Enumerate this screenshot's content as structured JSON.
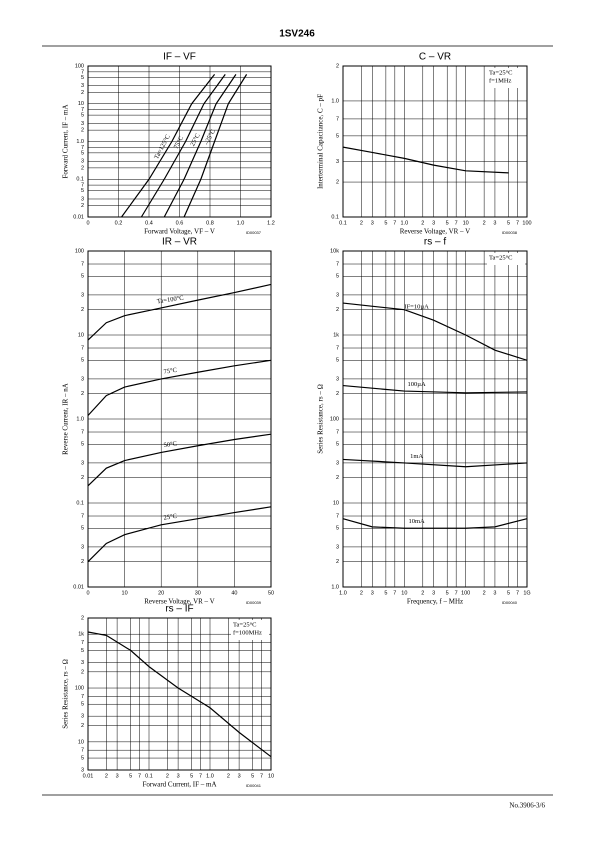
{
  "header": {
    "title": "1SV246"
  },
  "footer": {
    "page": "No.3906-3/6"
  },
  "chart_data": [
    {
      "type": "line",
      "title": "IF – VF",
      "xlabel": "Forward Voltage, VF – V",
      "ylabel": "Forward Current, IF – mA",
      "code": "ID00037",
      "xscale": "linear",
      "yscale": "log",
      "xlim": [
        0,
        1.2
      ],
      "ylim": [
        0.01,
        100
      ],
      "grid": true,
      "xticks": [
        0,
        0.2,
        0.4,
        0.6,
        0.8,
        {
          "value": 1,
          "label": "1.0"
        },
        1.2
      ],
      "yticks": [
        0.01,
        {
          "value": 0.02,
          "label": "2"
        },
        {
          "value": 0.03,
          "label": "3"
        },
        {
          "value": 0.05,
          "label": "5"
        },
        {
          "value": 0.07,
          "label": "7"
        },
        0.1,
        {
          "value": 0.2,
          "label": "2"
        },
        {
          "value": 0.3,
          "label": "3"
        },
        {
          "value": 0.5,
          "label": "5"
        },
        {
          "value": 0.7,
          "label": "7"
        },
        {
          "value": 1,
          "label": "1.0"
        },
        2,
        3,
        5,
        7,
        10,
        {
          "value": 20,
          "label": "2"
        },
        {
          "value": 30,
          "label": "3"
        },
        {
          "value": 50,
          "label": "5"
        },
        {
          "value": 70,
          "label": "7"
        },
        100
      ],
      "series": [
        {
          "name": "Ta=125°C",
          "color": "#000",
          "x": [
            0.22,
            0.4,
            0.55,
            0.68,
            0.83
          ],
          "values": [
            0.01,
            0.1,
            1,
            10,
            60
          ]
        },
        {
          "name": "75°C",
          "color": "#000",
          "x": [
            0.35,
            0.5,
            0.64,
            0.76,
            0.9
          ],
          "values": [
            0.01,
            0.1,
            1,
            10,
            60
          ]
        },
        {
          "name": "25°C",
          "color": "#000",
          "x": [
            0.5,
            0.63,
            0.74,
            0.84,
            0.97
          ],
          "values": [
            0.01,
            0.1,
            1,
            10,
            60
          ]
        },
        {
          "name": "–25°C",
          "color": "#000",
          "x": [
            0.63,
            0.74,
            0.83,
            0.92,
            1.04
          ],
          "values": [
            0.01,
            0.1,
            1,
            10,
            60
          ]
        }
      ]
    },
    {
      "type": "line",
      "title": "C – VR",
      "xlabel": "Reverse Voltage, VR – V",
      "ylabel": "Interterminal Capacitance, C – pF",
      "code": "ID00038",
      "xscale": "log",
      "yscale": "log",
      "xlim": [
        0.1,
        100
      ],
      "ylim": [
        0.1,
        2
      ],
      "grid": true,
      "xticks": [
        0.1,
        {
          "value": 0.2,
          "label": "2"
        },
        {
          "value": 0.3,
          "label": "3"
        },
        {
          "value": 0.5,
          "label": "5"
        },
        {
          "value": 0.7,
          "label": "7"
        },
        {
          "value": 1,
          "label": "1.0"
        },
        2,
        3,
        5,
        7,
        10,
        {
          "value": 20,
          "label": "2"
        },
        {
          "value": 30,
          "label": "3"
        },
        {
          "value": 50,
          "label": "5"
        },
        {
          "value": 70,
          "label": "7"
        },
        100
      ],
      "yticks": [
        0.1,
        {
          "value": 0.2,
          "label": "2"
        },
        {
          "value": 0.3,
          "label": "3"
        },
        {
          "value": 0.5,
          "label": "5"
        },
        {
          "value": 0.7,
          "label": "7"
        },
        {
          "value": 1,
          "label": "1.0"
        },
        2
      ],
      "annotations": [
        "Ta=25°C",
        "f=1MHz"
      ],
      "series": [
        {
          "color": "#000",
          "x": [
            0.1,
            0.3,
            1,
            3,
            10,
            50
          ],
          "values": [
            0.4,
            0.36,
            0.32,
            0.28,
            0.25,
            0.24
          ]
        }
      ]
    },
    {
      "type": "line",
      "title": "IR – VR",
      "xlabel": "Reverse Voltage, VR – V",
      "ylabel": "Reverse Current, IR – nA",
      "code": "ID00039",
      "xscale": "linear",
      "yscale": "log",
      "xlim": [
        0,
        50
      ],
      "ylim": [
        0.01,
        100
      ],
      "grid": true,
      "xticks": [
        0,
        10,
        20,
        30,
        40,
        50
      ],
      "yticks": [
        0.01,
        {
          "value": 0.02,
          "label": "2"
        },
        {
          "value": 0.03,
          "label": "3"
        },
        {
          "value": 0.05,
          "label": "5"
        },
        {
          "value": 0.07,
          "label": "7"
        },
        0.1,
        {
          "value": 0.2,
          "label": "2"
        },
        {
          "value": 0.3,
          "label": "3"
        },
        {
          "value": 0.5,
          "label": "5"
        },
        {
          "value": 0.7,
          "label": "7"
        },
        {
          "value": 1,
          "label": "1.0"
        },
        2,
        3,
        5,
        7,
        10,
        {
          "value": 20,
          "label": "2"
        },
        {
          "value": 30,
          "label": "3"
        },
        {
          "value": 50,
          "label": "5"
        },
        {
          "value": 70,
          "label": "7"
        },
        100
      ],
      "series": [
        {
          "name": "Ta=100°C",
          "color": "#000",
          "x": [
            0,
            5,
            10,
            20,
            30,
            40,
            50
          ],
          "values": [
            8.7,
            14,
            17,
            21,
            26,
            32,
            40
          ]
        },
        {
          "name": "75°C",
          "color": "#000",
          "x": [
            0,
            5,
            10,
            20,
            30,
            40,
            50
          ],
          "values": [
            1.1,
            1.9,
            2.4,
            3,
            3.6,
            4.3,
            5
          ]
        },
        {
          "name": "50°C",
          "color": "#000",
          "x": [
            0,
            5,
            10,
            20,
            30,
            40,
            50
          ],
          "values": [
            0.16,
            0.26,
            0.32,
            0.4,
            0.48,
            0.57,
            0.66
          ]
        },
        {
          "name": "25°C",
          "color": "#000",
          "x": [
            0,
            5,
            10,
            20,
            30,
            40,
            50
          ],
          "values": [
            0.02,
            0.033,
            0.042,
            0.055,
            0.065,
            0.077,
            0.09
          ]
        }
      ]
    },
    {
      "type": "line",
      "title": "rs – f",
      "xlabel": "Frequency, f – MHz",
      "ylabel": "Series Resistance, rs – Ω",
      "code": "ID00040",
      "xscale": "log",
      "yscale": "log",
      "xlim": [
        1,
        1000
      ],
      "ylim": [
        1,
        10000
      ],
      "grid": true,
      "xticks": [
        {
          "value": 1,
          "label": "1.0"
        },
        2,
        3,
        5,
        7,
        10,
        {
          "value": 20,
          "label": "2"
        },
        {
          "value": 30,
          "label": "3"
        },
        {
          "value": 50,
          "label": "5"
        },
        {
          "value": 70,
          "label": "7"
        },
        100,
        {
          "value": 200,
          "label": "2"
        },
        {
          "value": 300,
          "label": "3"
        },
        {
          "value": 500,
          "label": "5"
        },
        {
          "value": 700,
          "label": "7"
        },
        {
          "value": 1000,
          "label": "1G"
        }
      ],
      "yticks": [
        {
          "value": 1,
          "label": "1.0"
        },
        2,
        3,
        5,
        7,
        10,
        {
          "value": 20,
          "label": "2"
        },
        {
          "value": 30,
          "label": "3"
        },
        {
          "value": 50,
          "label": "5"
        },
        {
          "value": 70,
          "label": "7"
        },
        100,
        {
          "value": 200,
          "label": "2"
        },
        {
          "value": 300,
          "label": "3"
        },
        {
          "value": 500,
          "label": "5"
        },
        {
          "value": 700,
          "label": "7"
        },
        {
          "value": 1000,
          "label": "1k"
        },
        {
          "value": 2000,
          "label": "2"
        },
        {
          "value": 3000,
          "label": "3"
        },
        {
          "value": 5000,
          "label": "5"
        },
        {
          "value": 7000,
          "label": "7"
        },
        {
          "value": 10000,
          "label": "10k"
        }
      ],
      "annotations": [
        "Ta=25°C"
      ],
      "series": [
        {
          "name": "IF=10µA",
          "color": "#000",
          "x": [
            1,
            10,
            30,
            100,
            300,
            1000
          ],
          "values": [
            2400,
            2000,
            1500,
            1000,
            660,
            500
          ]
        },
        {
          "name": "100µA",
          "color": "#000",
          "x": [
            1,
            10,
            100,
            1000
          ],
          "values": [
            250,
            215,
            205,
            210
          ]
        },
        {
          "name": "1mA",
          "color": "#000",
          "x": [
            1,
            10,
            100,
            1000
          ],
          "values": [
            33,
            30,
            27,
            30
          ]
        },
        {
          "name": "10mA",
          "color": "#000",
          "x": [
            1,
            3,
            10,
            100,
            300,
            1000
          ],
          "values": [
            6.5,
            5.2,
            5,
            5,
            5.2,
            6.5
          ]
        }
      ]
    },
    {
      "type": "line",
      "title": "rs – IF",
      "xlabel": "Forward Current, IF – mA",
      "ylabel": "Series Resistance, rs – Ω",
      "code": "ID00041",
      "xscale": "log",
      "yscale": "log",
      "xlim": [
        0.01,
        10
      ],
      "ylim": [
        3,
        2000
      ],
      "grid": true,
      "xticks": [
        0.01,
        {
          "value": 0.02,
          "label": "2"
        },
        {
          "value": 0.03,
          "label": "3"
        },
        {
          "value": 0.05,
          "label": "5"
        },
        {
          "value": 0.07,
          "label": "7"
        },
        0.1,
        {
          "value": 0.2,
          "label": "2"
        },
        {
          "value": 0.3,
          "label": "3"
        },
        {
          "value": 0.5,
          "label": "5"
        },
        {
          "value": 0.7,
          "label": "7"
        },
        {
          "value": 1,
          "label": "1.0"
        },
        2,
        3,
        5,
        7,
        10
      ],
      "yticks": [
        3,
        5,
        7,
        10,
        {
          "value": 20,
          "label": "2"
        },
        {
          "value": 30,
          "label": "3"
        },
        {
          "value": 50,
          "label": "5"
        },
        {
          "value": 70,
          "label": "7"
        },
        100,
        {
          "value": 200,
          "label": "2"
        },
        {
          "value": 300,
          "label": "3"
        },
        {
          "value": 500,
          "label": "5"
        },
        {
          "value": 700,
          "label": "7"
        },
        {
          "value": 1000,
          "label": "1k"
        },
        {
          "value": 2000,
          "label": "2"
        }
      ],
      "annotations": [
        "Ta=25°C",
        "f=100MHz"
      ],
      "series": [
        {
          "color": "#000",
          "x": [
            0.01,
            0.02,
            0.05,
            0.1,
            0.3,
            1,
            3,
            10
          ],
          "values": [
            1100,
            950,
            500,
            250,
            100,
            43,
            15,
            5.3
          ]
        }
      ]
    }
  ]
}
